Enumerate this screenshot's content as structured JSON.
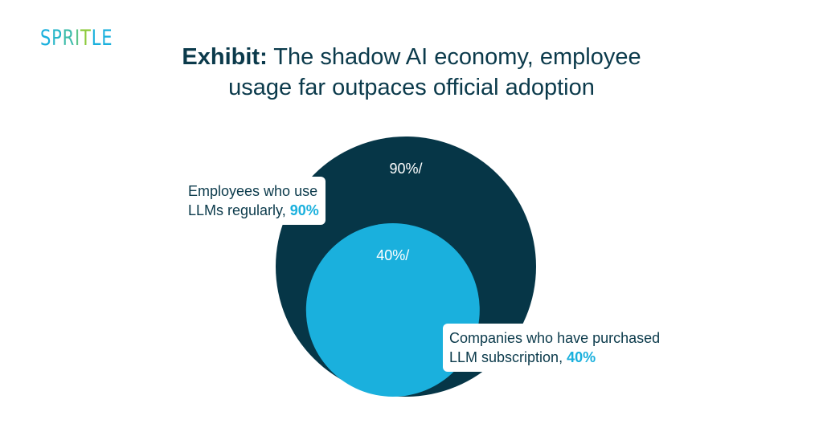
{
  "logo": {
    "letters": [
      {
        "char": "S",
        "color": "#1ab0dd"
      },
      {
        "char": "P",
        "color": "#27b6c8"
      },
      {
        "char": "R",
        "color": "#3dbcaa"
      },
      {
        "char": "I",
        "color": "#5dc48a"
      },
      {
        "char": "T",
        "color": "#8cca3b"
      },
      {
        "char": "L",
        "color": "#1ab0dd"
      },
      {
        "char": "E",
        "color": "#1ab0dd"
      }
    ]
  },
  "title": {
    "bold": "Exhibit:",
    "line1": " The shadow AI economy, employee",
    "line2": "usage far outpaces official adoption"
  },
  "chart_data": {
    "type": "nested-circle",
    "series": [
      {
        "name": "Employees who use LLMs regularly",
        "value": 90,
        "inner_label": "90%/",
        "color": "#063647"
      },
      {
        "name": "Companies who have purchased LLM subscription",
        "value": 40,
        "inner_label": "40%/",
        "color": "#1ab0dd"
      }
    ]
  },
  "callouts": {
    "employees": {
      "line1": "Employees who use",
      "line2": "LLMs regularly, ",
      "pct": "90%"
    },
    "companies": {
      "line1": "Companies who have purchased",
      "line2": "LLM subscription, ",
      "pct": "40%"
    }
  }
}
